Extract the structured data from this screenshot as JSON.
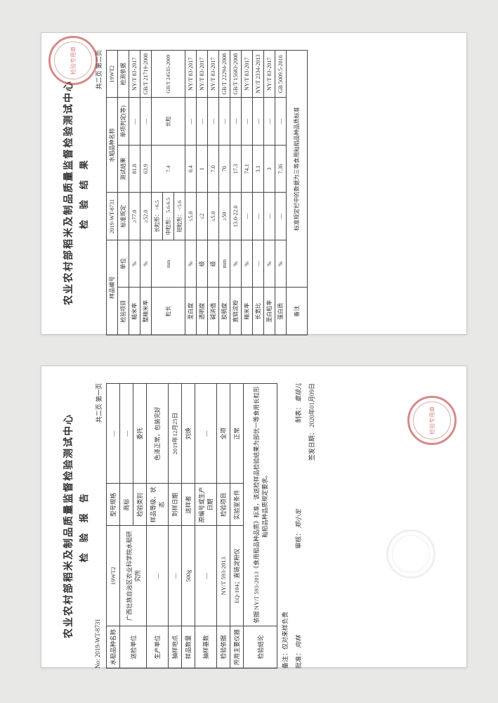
{
  "org_title": "农业农村部稻米及制品质量监督检验测试中心",
  "page_marker": "共二页 第一页",
  "page_marker2": "共二页 第二页",
  "report_no_label": "No:",
  "report_no": "2019-WT-8731",
  "page1": {
    "subtitle": "检 验 报 告",
    "fields": {
      "variety_label": "水稻品种名称",
      "variety": "19WT2",
      "spec_label": "型号规格",
      "spec": "—",
      "brand_label": "商标",
      "brand": "—",
      "sender_label": "送检单位",
      "sender": "广西壮族自治区农业科学院水稻研究所",
      "insp_type_label": "检验类别",
      "insp_type": "委托",
      "producer_label": "生产单位",
      "producer": "—",
      "sample_state_label": "样品等级、状态",
      "sample_state": "色泽正常，包装完好",
      "sampling_place_label": "抽样地点",
      "sampling_place": "—",
      "arrival_date_label": "到样日期",
      "arrival_date": "2019年12月25日",
      "qty_label": "样品数量",
      "qty": "500g",
      "sampler_label": "送样者",
      "sampler": "刘焕",
      "sample_base_label": "抽样基数",
      "sample_base": "—",
      "orig_no_label": "原编号或生产日期",
      "orig_no": "—",
      "basis_label": "检验依据",
      "basis": "NY/T 593-2013",
      "insp_item_label": "检验项目",
      "insp_item": "全项",
      "instrument_label": "所用主要仪器",
      "instrument": "EQ-104；直链淀粉仪",
      "lab_cond_label": "实验室条件",
      "lab_cond": "正常"
    },
    "conclusion_label": "检验结论",
    "conclusion": "依据 NY/T 593-2013《食用稻品种品质》标准，该送检样品检验结果为部优一等食用长粒形籼稻品种品质规定要求。",
    "remark_label": "备注：仅对来样负责",
    "approve_label": "批准：",
    "review_label": "审核：",
    "made_label": "制表：",
    "sign_date_label": "签发日期：",
    "sign_date": "2020年01月09日",
    "sig1": "向林",
    "sig2": "郑小龙",
    "sig3": "章琼儿",
    "seal_text": "检验专用章"
  },
  "page2": {
    "subtitle": "检 验 结 果",
    "sample_no_label": "样品编号",
    "sample_no": "2019-WT-8731",
    "variety_label": "水稻品种名称",
    "variety": "19WT2",
    "columns": [
      "检验项目",
      "单位",
      "标准规定",
      "测试结果",
      "单项判定(等)",
      "检测依据"
    ],
    "grain_len_sub": {
      "long": {
        "label": "长粒形：",
        "spec": ">6.5"
      },
      "medium": {
        "label": "中粒形：",
        "spec": "5.6-6.5"
      },
      "short": {
        "label": "短粒形：",
        "spec": "<5.6"
      }
    },
    "rows": [
      {
        "item": "糙米率",
        "unit": "%",
        "spec": "≥77.0",
        "result": "81.8",
        "judge": "—",
        "basis": "NY/T 83-2017"
      },
      {
        "item": "整精米率",
        "unit": "%",
        "spec": "≥52.0",
        "result": "63.9",
        "judge": "—",
        "basis": "GB/T 21719-2008"
      },
      {
        "item": "粒长",
        "unit": "mm",
        "spec": "",
        "result": "7.4",
        "judge": "长粒",
        "basis": "GB/T 24535-2009"
      },
      {
        "item": "垩白度",
        "unit": "%",
        "spec": "≤5.0",
        "result": "0.4",
        "judge": "—",
        "basis": "NY/T 83-2017"
      },
      {
        "item": "透明度",
        "unit": "级",
        "spec": "≤2",
        "result": "1",
        "judge": "—",
        "basis": "NY/T 83-2017"
      },
      {
        "item": "碱消值",
        "unit": "级",
        "spec": "≤5.0",
        "result": "7.0",
        "judge": "—",
        "basis": "NY/T 83-2017"
      },
      {
        "item": "胶稠度",
        "unit": "mm",
        "spec": "≥50",
        "result": "70",
        "judge": "—",
        "basis": "GB/T 22294-2008"
      },
      {
        "item": "直链淀粉",
        "unit": "%",
        "spec": "13.0-22.0",
        "result": "17.3",
        "judge": "—",
        "basis": "GB/T 15683-2008"
      },
      {
        "item": "精米率",
        "unit": "%",
        "spec": "—",
        "result": "74.1",
        "judge": "—",
        "basis": "NY/T 83-2017"
      },
      {
        "item": "长宽比",
        "unit": "—",
        "spec": "—",
        "result": "3.1",
        "judge": "—",
        "basis": "NY/T 2334-2013"
      },
      {
        "item": "垩白粒率",
        "unit": "%",
        "spec": "—",
        "result": "3",
        "judge": "—",
        "basis": "NY/T 83-2017"
      },
      {
        "item": "蛋白质",
        "unit": "%",
        "spec": "—",
        "result": "7.36",
        "judge": "—",
        "basis": "GB 5009.5-2016"
      }
    ],
    "note_label": "备注",
    "note": "标准规定栏中的数据为三等食用籼稻品种品质标准",
    "seal_text": "检验专用章"
  }
}
